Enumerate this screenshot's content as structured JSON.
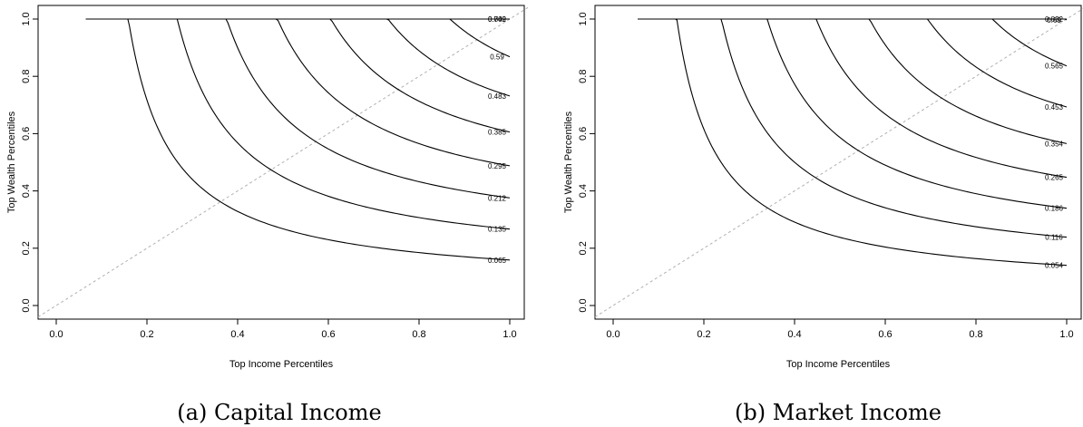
{
  "chart_data": [
    {
      "type": "line",
      "subtype": "contour",
      "caption": "(a) Capital Income",
      "xlabel": "Top Income Percentiles",
      "ylabel": "Top Wealth Percentiles",
      "xlim": [
        0,
        1
      ],
      "ylim": [
        0,
        1
      ],
      "xticks": [
        "0.0",
        "0.2",
        "0.4",
        "0.6",
        "0.8",
        "1.0"
      ],
      "yticks": [
        "0.0",
        "0.2",
        "0.4",
        "0.6",
        "0.8",
        "1.0"
      ],
      "diagonal": "dashed gray reference line y = x",
      "grid": false,
      "levels": [
        {
          "label": "0.065",
          "value": 0.065
        },
        {
          "label": "0.135",
          "value": 0.135
        },
        {
          "label": "0.212",
          "value": 0.212
        },
        {
          "label": "0.295",
          "value": 0.295
        },
        {
          "label": "0.385",
          "value": 0.385
        },
        {
          "label": "0.483",
          "value": 0.483
        },
        {
          "label": "0.59",
          "value": 0.59
        },
        {
          "label": "0.709",
          "value": 0.709
        },
        {
          "label": "0.842",
          "value": 0.842
        }
      ]
    },
    {
      "type": "line",
      "subtype": "contour",
      "caption": "(b) Market Income",
      "xlabel": "Top Income Percentiles",
      "ylabel": "Top Wealth Percentiles",
      "xlim": [
        0,
        1
      ],
      "ylim": [
        0,
        1
      ],
      "xticks": [
        "0.0",
        "0.2",
        "0.4",
        "0.6",
        "0.8",
        "1.0"
      ],
      "yticks": [
        "0.0",
        "0.2",
        "0.4",
        "0.6",
        "0.8",
        "1.0"
      ],
      "diagonal": "dashed gray reference line y = x",
      "grid": false,
      "levels": [
        {
          "label": "0.054",
          "value": 0.054
        },
        {
          "label": "0.116",
          "value": 0.116
        },
        {
          "label": "0.186",
          "value": 0.186
        },
        {
          "label": "0.265",
          "value": 0.265
        },
        {
          "label": "0.354",
          "value": 0.354
        },
        {
          "label": "0.453",
          "value": 0.453
        },
        {
          "label": "0.565",
          "value": 0.565
        },
        {
          "label": "0.69",
          "value": 0.69
        },
        {
          "label": "0.832",
          "value": 0.832
        }
      ]
    }
  ]
}
